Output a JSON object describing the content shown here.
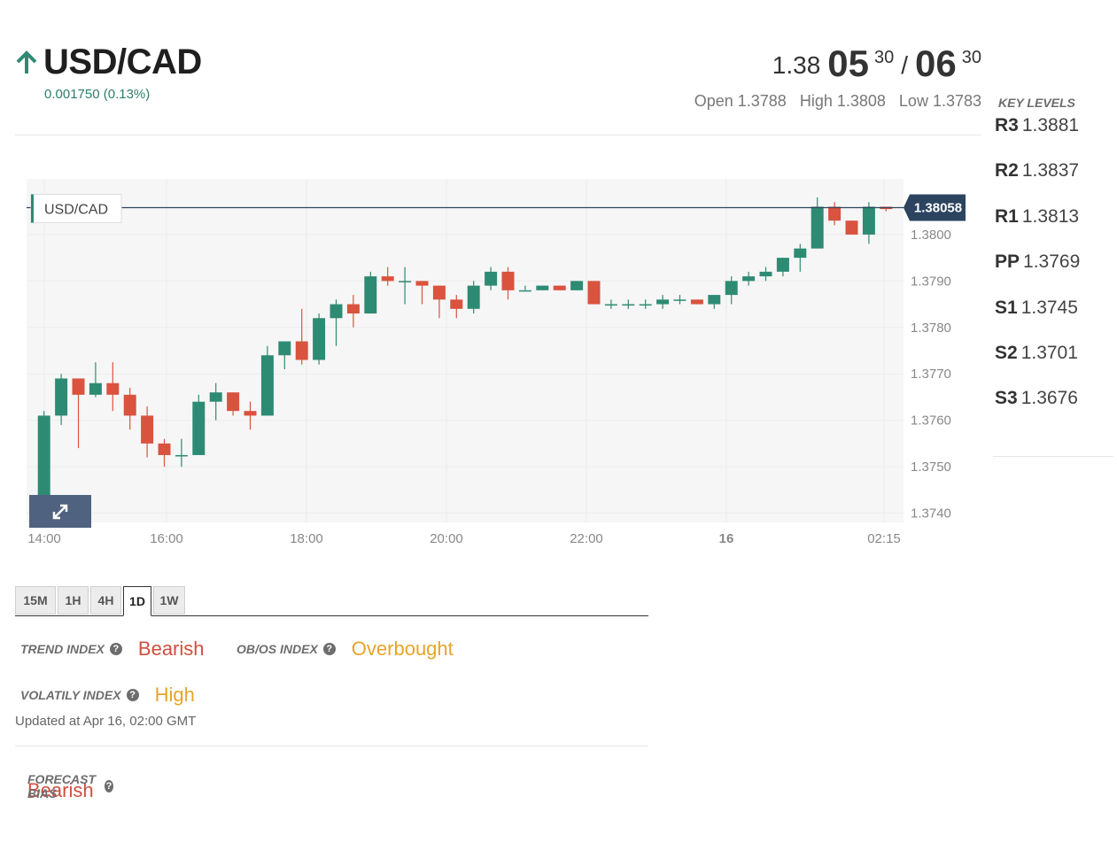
{
  "header": {
    "pair": "USD/CAD",
    "change": "0.001750 (0.13%)",
    "quote": {
      "bid_prefix": "1.38",
      "bid_main": "05",
      "bid_sup": "30",
      "separator": "/",
      "ask_main": "06",
      "ask_sup": "30"
    },
    "open": "Open 1.3788",
    "high": "High 1.3808",
    "low": "Low 1.3783",
    "colors": {
      "up": "#2e8b73",
      "title": "#1f1f1f"
    }
  },
  "key_levels": {
    "title": "KEY LEVELS",
    "levels": [
      {
        "name": "R3",
        "value": "1.3881"
      },
      {
        "name": "R2",
        "value": "1.3837"
      },
      {
        "name": "R1",
        "value": "1.3813"
      },
      {
        "name": "PP",
        "value": "1.3769"
      },
      {
        "name": "S1",
        "value": "1.3745"
      },
      {
        "name": "S2",
        "value": "1.3701"
      },
      {
        "name": "S3",
        "value": "1.3676"
      }
    ]
  },
  "chart_data": {
    "type": "candlestick",
    "legend": "USD/CAD",
    "current_price_label": "1.38058",
    "current_price": 1.38058,
    "ylim": [
      1.3738,
      1.3812
    ],
    "y_ticks": [
      "1.3800",
      "1.3790",
      "1.3780",
      "1.3770",
      "1.3760",
      "1.3750",
      "1.3740"
    ],
    "x_ticks": [
      {
        "label": "14:00",
        "bold": false
      },
      {
        "label": "16:00",
        "bold": false
      },
      {
        "label": "18:00",
        "bold": false
      },
      {
        "label": "20:00",
        "bold": false
      },
      {
        "label": "22:00",
        "bold": false
      },
      {
        "label": "16",
        "bold": true
      },
      {
        "label": "02:15",
        "bold": false
      }
    ],
    "colors": {
      "up": "#2e8b73",
      "down": "#d9533f",
      "neutral": "#222222",
      "price_line": "#2c4460",
      "label_bg": "#2c4460"
    },
    "candles": [
      {
        "o": 1.3739,
        "h": 1.3762,
        "l": 1.3738,
        "c": 1.3761
      },
      {
        "o": 1.3761,
        "h": 1.377,
        "l": 1.3759,
        "c": 1.3769
      },
      {
        "o": 1.3769,
        "h": 1.3769,
        "l": 1.3754,
        "c": 1.37655
      },
      {
        "o": 1.37655,
        "h": 1.37725,
        "l": 1.3765,
        "c": 1.3768
      },
      {
        "o": 1.3768,
        "h": 1.37725,
        "l": 1.3762,
        "c": 1.37655
      },
      {
        "o": 1.37655,
        "h": 1.3767,
        "l": 1.3758,
        "c": 1.3761
      },
      {
        "o": 1.3761,
        "h": 1.3763,
        "l": 1.3752,
        "c": 1.3755
      },
      {
        "o": 1.3755,
        "h": 1.3756,
        "l": 1.375,
        "c": 1.37525
      },
      {
        "o": 1.37525,
        "h": 1.3756,
        "l": 1.375,
        "c": 1.37525
      },
      {
        "o": 1.37525,
        "h": 1.37655,
        "l": 1.37525,
        "c": 1.3764
      },
      {
        "o": 1.3764,
        "h": 1.3768,
        "l": 1.376,
        "c": 1.3766
      },
      {
        "o": 1.3766,
        "h": 1.3766,
        "l": 1.3761,
        "c": 1.3762
      },
      {
        "o": 1.3762,
        "h": 1.3764,
        "l": 1.3758,
        "c": 1.3761
      },
      {
        "o": 1.3761,
        "h": 1.3776,
        "l": 1.3761,
        "c": 1.3774
      },
      {
        "o": 1.3774,
        "h": 1.3777,
        "l": 1.3771,
        "c": 1.3777
      },
      {
        "o": 1.3777,
        "h": 1.3784,
        "l": 1.3772,
        "c": 1.3773
      },
      {
        "o": 1.3773,
        "h": 1.3783,
        "l": 1.3772,
        "c": 1.3782
      },
      {
        "o": 1.3782,
        "h": 1.3786,
        "l": 1.3776,
        "c": 1.3785
      },
      {
        "o": 1.3785,
        "h": 1.3787,
        "l": 1.378,
        "c": 1.3783
      },
      {
        "o": 1.3783,
        "h": 1.3792,
        "l": 1.3783,
        "c": 1.3791
      },
      {
        "o": 1.3791,
        "h": 1.3793,
        "l": 1.3789,
        "c": 1.379
      },
      {
        "o": 1.379,
        "h": 1.3793,
        "l": 1.3785,
        "c": 1.379
      },
      {
        "o": 1.379,
        "h": 1.379,
        "l": 1.3785,
        "c": 1.3789
      },
      {
        "o": 1.3789,
        "h": 1.3789,
        "l": 1.3782,
        "c": 1.3786
      },
      {
        "o": 1.3786,
        "h": 1.3787,
        "l": 1.3782,
        "c": 1.3784
      },
      {
        "o": 1.3784,
        "h": 1.379,
        "l": 1.3783,
        "c": 1.3789
      },
      {
        "o": 1.3789,
        "h": 1.3793,
        "l": 1.3788,
        "c": 1.3792
      },
      {
        "o": 1.3792,
        "h": 1.3793,
        "l": 1.3786,
        "c": 1.3788
      },
      {
        "o": 1.3788,
        "h": 1.3789,
        "l": 1.3788,
        "c": 1.3788
      },
      {
        "o": 1.3788,
        "h": 1.3789,
        "l": 1.3788,
        "c": 1.3789
      },
      {
        "o": 1.3789,
        "h": 1.3789,
        "l": 1.3788,
        "c": 1.3788
      },
      {
        "o": 1.3788,
        "h": 1.379,
        "l": 1.3788,
        "c": 1.379
      },
      {
        "o": 1.379,
        "h": 1.379,
        "l": 1.3785,
        "c": 1.3785
      },
      {
        "o": 1.3785,
        "h": 1.3786,
        "l": 1.3784,
        "c": 1.3785
      },
      {
        "o": 1.3785,
        "h": 1.3786,
        "l": 1.3784,
        "c": 1.3785
      },
      {
        "o": 1.3785,
        "h": 1.3786,
        "l": 1.3784,
        "c": 1.3785
      },
      {
        "o": 1.3785,
        "h": 1.3787,
        "l": 1.3784,
        "c": 1.3786
      },
      {
        "o": 1.3786,
        "h": 1.3787,
        "l": 1.3785,
        "c": 1.3786
      },
      {
        "o": 1.3786,
        "h": 1.3786,
        "l": 1.3785,
        "c": 1.3785
      },
      {
        "o": 1.3785,
        "h": 1.3787,
        "l": 1.3784,
        "c": 1.3787
      },
      {
        "o": 1.3787,
        "h": 1.3791,
        "l": 1.3785,
        "c": 1.379
      },
      {
        "o": 1.379,
        "h": 1.3792,
        "l": 1.3789,
        "c": 1.3791
      },
      {
        "o": 1.3791,
        "h": 1.3793,
        "l": 1.379,
        "c": 1.3792
      },
      {
        "o": 1.3792,
        "h": 1.3795,
        "l": 1.3791,
        "c": 1.3795
      },
      {
        "o": 1.3795,
        "h": 1.3798,
        "l": 1.3792,
        "c": 1.3797
      },
      {
        "o": 1.3797,
        "h": 1.3808,
        "l": 1.3797,
        "c": 1.3806
      },
      {
        "o": 1.3806,
        "h": 1.3807,
        "l": 1.3802,
        "c": 1.3803
      },
      {
        "o": 1.3803,
        "h": 1.3803,
        "l": 1.38,
        "c": 1.38
      },
      {
        "o": 1.38,
        "h": 1.3807,
        "l": 1.3798,
        "c": 1.3806
      },
      {
        "o": 1.3806,
        "h": 1.3806,
        "l": 1.3805,
        "c": 1.38055
      }
    ]
  },
  "tabs": [
    {
      "label": "15M",
      "active": false
    },
    {
      "label": "1H",
      "active": false
    },
    {
      "label": "4H",
      "active": false
    },
    {
      "label": "1D",
      "active": true
    },
    {
      "label": "1W",
      "active": false
    }
  ],
  "indicators": {
    "trend_label": "TREND INDEX",
    "trend_value": "Bearish",
    "obos_label": "OB/OS INDEX",
    "obos_value": "Overbought",
    "volatility_label": "VOLATILY INDEX",
    "volatility_value": "High",
    "updated": "Updated at Apr 16, 02:00 GMT"
  },
  "forecast": {
    "label": "FORECAST BIAS",
    "value": "Bearish"
  }
}
